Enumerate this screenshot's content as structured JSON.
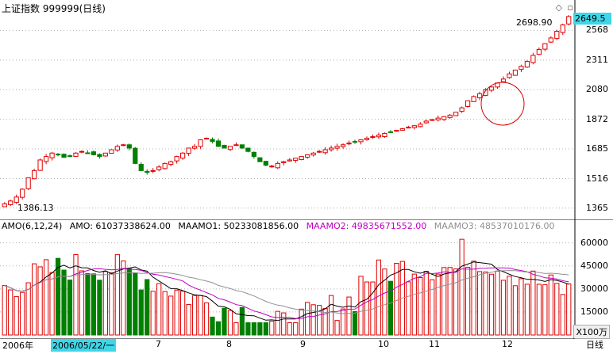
{
  "header": {
    "title": "上证指数 999999(日线)",
    "icons": [
      "diamond-icon",
      "restore-window-icon"
    ]
  },
  "price_axis": {
    "ticks": [
      "2568",
      "2311",
      "2080",
      "1872",
      "1685",
      "1516",
      "1365"
    ],
    "current_value": "2649.5"
  },
  "annotations": {
    "high_label": "2698.90",
    "low_label": "1386.13"
  },
  "volume": {
    "legend_title": "AMO(6,12,24)",
    "amo": "AMO: 61037338624.00",
    "maamo1": "MAAMO1: 50233081856.00",
    "maamo2": "MAAMO2: 49835671552.00",
    "maamo3": "MAAMO3: 48537010176.00",
    "ticks": [
      "60000",
      "45000",
      "30000",
      "15000"
    ],
    "unit": "X100万"
  },
  "date_axis": {
    "labels": [
      "2006年",
      "2006/05/22/一",
      "7",
      "8",
      "9",
      "10",
      "11",
      "12"
    ],
    "period": "日线"
  },
  "colors": {
    "up": "#e00000",
    "down": "#008000",
    "grid": "#b0b0b0",
    "ma1": "#000000",
    "ma2": "#c000c0",
    "ma3": "#909090",
    "highlight": "#3fd6e8"
  },
  "chart_data": {
    "type": "candlestick",
    "title": "上证指数 999999(日线)",
    "y_scale": "log",
    "ylim": [
      1330,
      2720
    ],
    "x_labels": [
      "2006/05",
      "7",
      "8",
      "9",
      "10",
      "11",
      "12"
    ],
    "series": [
      {
        "name": "close",
        "values": [
          1386,
          1400,
          1420,
          1460,
          1520,
          1560,
          1620,
          1640,
          1660,
          1650,
          1635,
          1640,
          1660,
          1670,
          1660,
          1650,
          1640,
          1660,
          1680,
          1700,
          1710,
          1690,
          1600,
          1560,
          1550,
          1560,
          1580,
          1600,
          1610,
          1640,
          1660,
          1690,
          1700,
          1740,
          1750,
          1730,
          1700,
          1690,
          1700,
          1710,
          1690,
          1670,
          1640,
          1610,
          1590,
          1585,
          1600,
          1610,
          1620,
          1630,
          1640,
          1650,
          1660,
          1670,
          1680,
          1690,
          1700,
          1710,
          1720,
          1730,
          1740,
          1750,
          1760,
          1770,
          1780,
          1790,
          1800,
          1810,
          1820,
          1830,
          1840,
          1860,
          1870,
          1880,
          1890,
          1900,
          1920,
          1950,
          2000,
          2030,
          2050,
          2080,
          2100,
          2130,
          2160,
          2200,
          2230,
          2260,
          2300,
          2350,
          2400,
          2450,
          2500,
          2560,
          2620,
          2698
        ]
      }
    ],
    "volume_series": {
      "name": "AMO",
      "unit": "X100万",
      "ylim": [
        0,
        66000
      ]
    }
  }
}
